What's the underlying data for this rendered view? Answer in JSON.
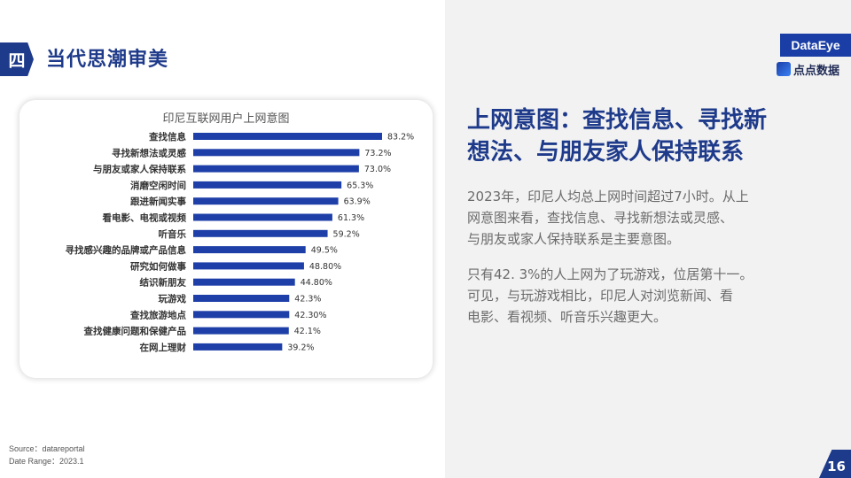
{
  "section": {
    "badge": "四",
    "title": "当代思潮审美"
  },
  "logos": {
    "dataeye": "DataEye",
    "diandian": "点点数据"
  },
  "headline": [
    "上网意图：查找信息、寻找新",
    "想法、与朋友家人保持联系"
  ],
  "paragraphs": [
    [
      "2023年，印尼人均总上网时间超过7小时。从上",
      "网意图来看，查找信息、寻找新想法或灵感、",
      "与朋友或家人保持联系是主要意图。"
    ],
    [
      "只有42. 3%的人上网为了玩游戏，位居第十一。",
      "可见，与玩游戏相比，印尼人对浏览新闻、看",
      "电影、看视频、听音乐兴趣更大。"
    ]
  ],
  "source": {
    "line1": "Source：datareportal",
    "line2": "Date Range：2023.1"
  },
  "page_number": "16",
  "colors": {
    "bar": "#1e3fa8",
    "accent": "#1e3a8a"
  },
  "chart_data": {
    "type": "bar",
    "orientation": "horizontal",
    "title": "印尼互联网用户上网意图",
    "categories": [
      "查找信息",
      "寻找新想法或灵感",
      "与朋友或家人保持联系",
      "消磨空闲时间",
      "跟进新闻实事",
      "看电影、电视或视频",
      "听音乐",
      "寻找感兴趣的品牌或产品信息",
      "研究如何做事",
      "结识新朋友",
      "玩游戏",
      "查找旅游地点",
      "查找健康问题和保健产品",
      "在网上理财"
    ],
    "values": [
      83.2,
      73.2,
      73.0,
      65.3,
      63.9,
      61.3,
      59.2,
      49.5,
      48.8,
      44.8,
      42.3,
      42.3,
      42.1,
      39.2
    ],
    "labels": [
      "83.2%",
      "73.2%",
      "73.0%",
      "65.3%",
      "63.9%",
      "61.3%",
      "59.2%",
      "49.5%",
      "48.80%",
      "44.80%",
      "42.3%",
      "42.30%",
      "42.1%",
      "39.2%"
    ],
    "xlim": [
      0,
      100
    ]
  }
}
